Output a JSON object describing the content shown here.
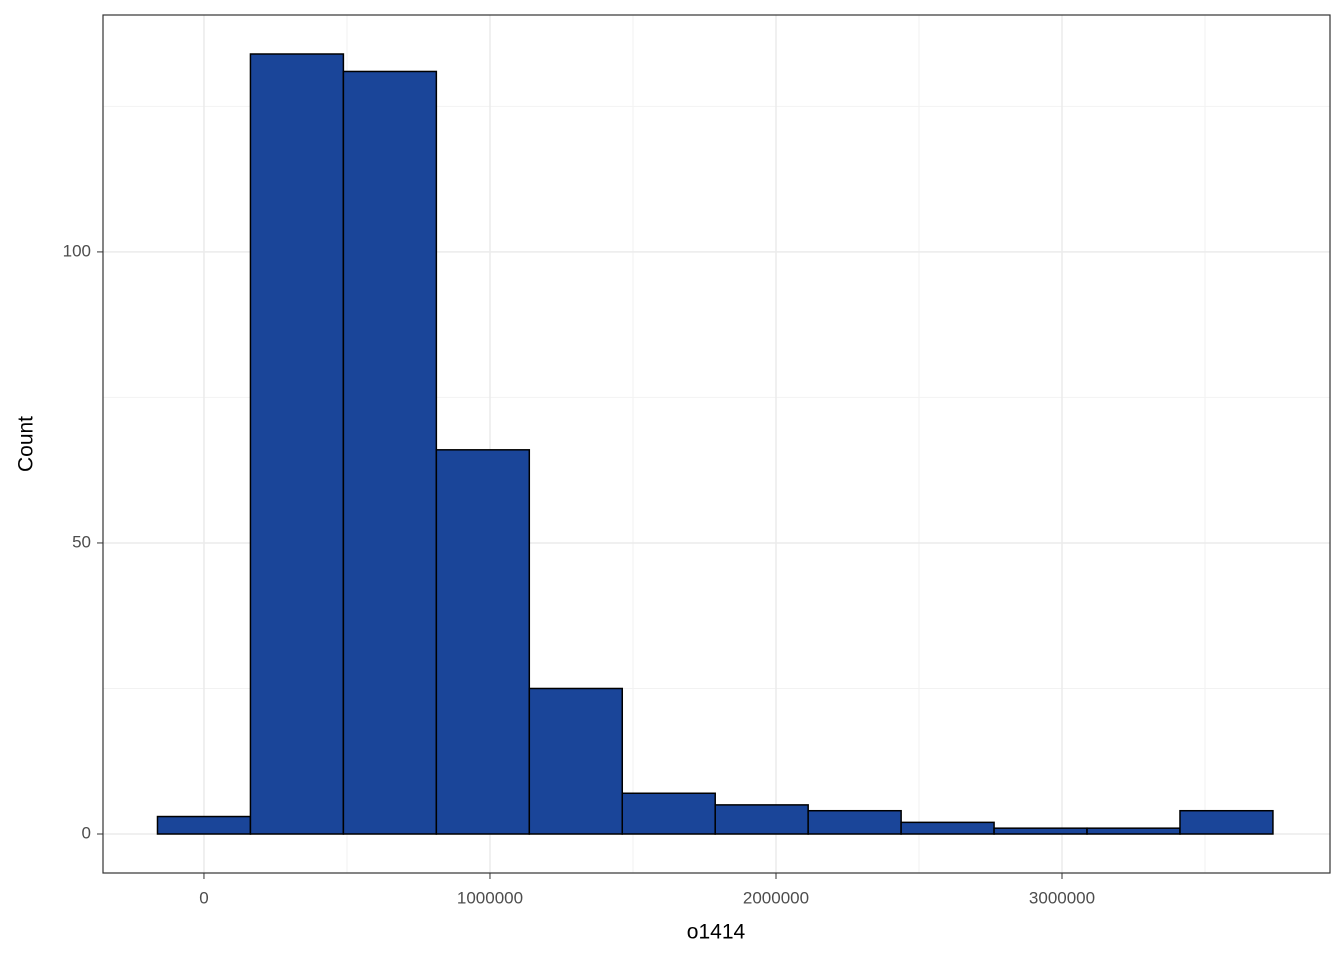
{
  "chart_data": {
    "type": "histogram",
    "x_label": "o1414",
    "y_label": "Count",
    "bins": [
      -162500,
      162500,
      487500,
      812500,
      1137500,
      1462500,
      1787500,
      2112500,
      2437500,
      2762500,
      3087500,
      3412500,
      3737500
    ],
    "values": [
      3,
      134,
      131,
      66,
      25,
      7,
      5,
      4,
      2,
      1,
      1,
      4
    ],
    "color": "#1a4599",
    "edge_color": "#000000",
    "xlim": [
      -353000,
      3937000
    ],
    "ylim": [
      -6.7,
      140.7
    ],
    "xticks": [
      0,
      1000000,
      2000000,
      3000000
    ],
    "yticks": [
      0,
      50,
      100
    ],
    "xminor": [
      500000,
      1500000,
      2500000,
      3500000
    ],
    "yminor": [
      25,
      75,
      125
    ],
    "grid": true
  }
}
